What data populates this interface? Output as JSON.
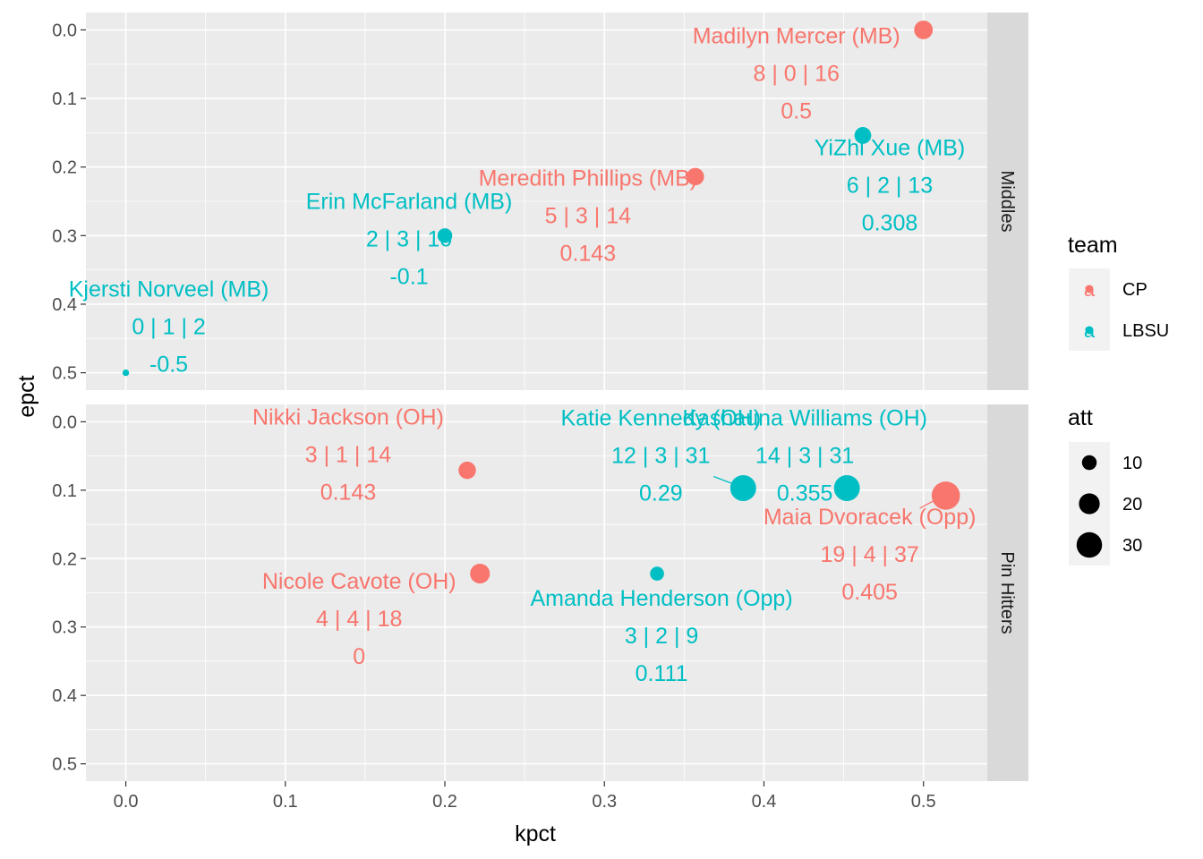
{
  "chart_data": {
    "type": "scatter",
    "xlabel": "kpct",
    "ylabel": "epct",
    "xlim": [
      -0.025,
      0.54
    ],
    "ylim": [
      0.5,
      0.0
    ],
    "y_reversed": true,
    "x_ticks": [
      "0.0",
      "0.1",
      "0.2",
      "0.3",
      "0.4",
      "0.5"
    ],
    "y_ticks": [
      "0.0",
      "0.1",
      "0.2",
      "0.3",
      "0.4",
      "0.5"
    ],
    "grid": true,
    "colors": {
      "CP": "#F8766D",
      "LBSU": "#00BFC4"
    },
    "legend_placement": "right",
    "legend": {
      "team_title": "team",
      "team_items": [
        "CP",
        "LBSU"
      ],
      "att_title": "att",
      "att_items": [
        "10",
        "20",
        "30"
      ]
    },
    "panels": [
      {
        "strip": "Middles",
        "points": [
          {
            "name": "Madilyn Mercer (MB)",
            "team": "CP",
            "kpct": 0.5,
            "epct": 0.0,
            "att": 16,
            "stats": "8 | 0 | 16",
            "hit": "0.5"
          },
          {
            "name": "YiZhi Xue (MB)",
            "team": "LBSU",
            "kpct": 0.462,
            "epct": 0.154,
            "att": 13,
            "stats": "6 | 2 | 13",
            "hit": "0.308"
          },
          {
            "name": "Meredith Phillips (MB)",
            "team": "CP",
            "kpct": 0.357,
            "epct": 0.214,
            "att": 14,
            "stats": "5 | 3 | 14",
            "hit": "0.143"
          },
          {
            "name": "Erin McFarland (MB)",
            "team": "LBSU",
            "kpct": 0.2,
            "epct": 0.3,
            "att": 10,
            "stats": "2 | 3 | 10",
            "hit": "-0.1"
          },
          {
            "name": "Kjersti Norveel (MB)",
            "team": "LBSU",
            "kpct": 0.0,
            "epct": 0.5,
            "att": 2,
            "stats": "0 | 1 | 2",
            "hit": "-0.5"
          }
        ]
      },
      {
        "strip": "Pin Hitters",
        "points": [
          {
            "name": "Nikki Jackson (OH)",
            "team": "CP",
            "kpct": 0.214,
            "epct": 0.071,
            "att": 14,
            "stats": "3 | 1 | 14",
            "hit": "0.143"
          },
          {
            "name": "Katie Kennedy (OH)",
            "team": "LBSU",
            "kpct": 0.387,
            "epct": 0.097,
            "att": 31,
            "stats": "12 | 3 | 31",
            "hit": "0.29"
          },
          {
            "name": "Kashauna Williams (OH)",
            "team": "LBSU",
            "kpct": 0.452,
            "epct": 0.097,
            "att": 31,
            "stats": "14 | 3 | 31",
            "hit": "0.355"
          },
          {
            "name": "Maia Dvoracek (Opp)",
            "team": "CP",
            "kpct": 0.514,
            "epct": 0.108,
            "att": 37,
            "stats": "19 | 4 | 37",
            "hit": "0.405"
          },
          {
            "name": "Nicole Cavote (OH)",
            "team": "CP",
            "kpct": 0.222,
            "epct": 0.222,
            "att": 18,
            "stats": "4 | 4 | 18",
            "hit": "0"
          },
          {
            "name": "Amanda Henderson (Opp)",
            "team": "LBSU",
            "kpct": 0.333,
            "epct": 0.222,
            "att": 9,
            "stats": "3 | 2 | 9",
            "hit": "0.111"
          }
        ]
      }
    ]
  }
}
